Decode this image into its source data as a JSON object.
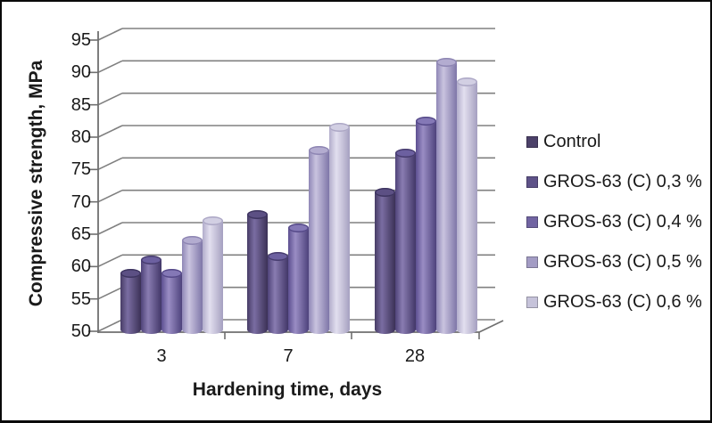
{
  "chart_data": {
    "type": "bar",
    "subtype": "3d-cylinder",
    "title": "",
    "xlabel": "Hardening time, days",
    "ylabel": "Compressive strength, MPa",
    "categories": [
      "3",
      "7",
      "28"
    ],
    "ylim": [
      50,
      95
    ],
    "ytick_step": 5,
    "grid": true,
    "legend_position": "right",
    "axis_color": "#6f6f6f",
    "gridline_color": "#808080",
    "series": [
      {
        "name": "Control",
        "values": [
          59,
          68,
          71.5
        ],
        "colors": {
          "edge": "#473C66",
          "mid": "#7A6DA2",
          "edge2": "#3B3156",
          "cap": "#5C5084",
          "cap_edge": "#3E3560",
          "legend": "#4C4169"
        }
      },
      {
        "name": "GROS-63 (C) 0,3 %",
        "values": [
          61,
          61.5,
          77.5
        ],
        "colors": {
          "edge": "#4F4379",
          "mid": "#897CB1",
          "edge2": "#423768",
          "cap": "#6C60A0",
          "cap_edge": "#473C6E",
          "legend": "#5E5288"
        }
      },
      {
        "name": "GROS-63 (C) 0,4 %",
        "values": [
          59,
          66,
          82.5
        ],
        "colors": {
          "edge": "#5C4F90",
          "mid": "#9A8DC4",
          "edge2": "#4D427C",
          "cap": "#8478B6",
          "cap_edge": "#554988",
          "legend": "#7164A2"
        }
      },
      {
        "name": "GROS-63 (C) 0,5 %",
        "values": [
          64,
          78,
          91.5
        ],
        "colors": {
          "edge": "#8F87B6",
          "mid": "#C9C3DF",
          "edge2": "#7E76A8",
          "cap": "#B3ACD0",
          "cap_edge": "#8D85B2",
          "legend": "#A39CC4"
        }
      },
      {
        "name": "GROS-63 (C) 0,6 %",
        "values": [
          67,
          81.5,
          88.5
        ],
        "colors": {
          "edge": "#B2ADCB",
          "mid": "#E2DFEF",
          "edge2": "#A5A0C0",
          "cap": "#D2CFE3",
          "cap_edge": "#ACA7C5",
          "legend": "#C6C3DA"
        }
      }
    ]
  }
}
